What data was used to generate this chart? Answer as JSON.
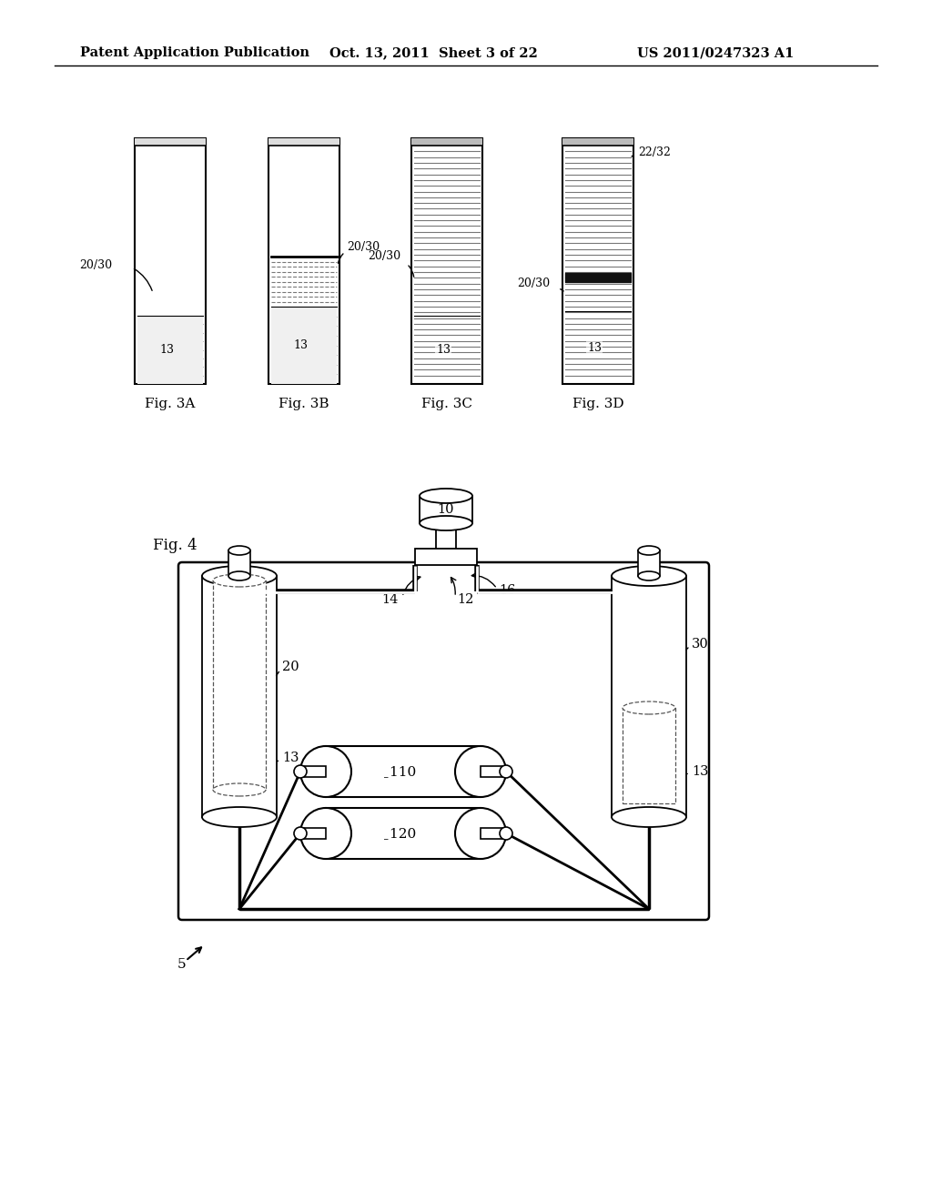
{
  "bg_color": "#ffffff",
  "header_text1": "Patent Application Publication",
  "header_text2": "Oct. 13, 2011  Sheet 3 of 22",
  "header_text3": "US 2011/0247323 A1",
  "fig3_labels": [
    "Fig. 3A",
    "Fig. 3B",
    "Fig. 3C",
    "Fig. 3D"
  ],
  "fig4_label": "Fig. 4",
  "fig4_number": "5"
}
